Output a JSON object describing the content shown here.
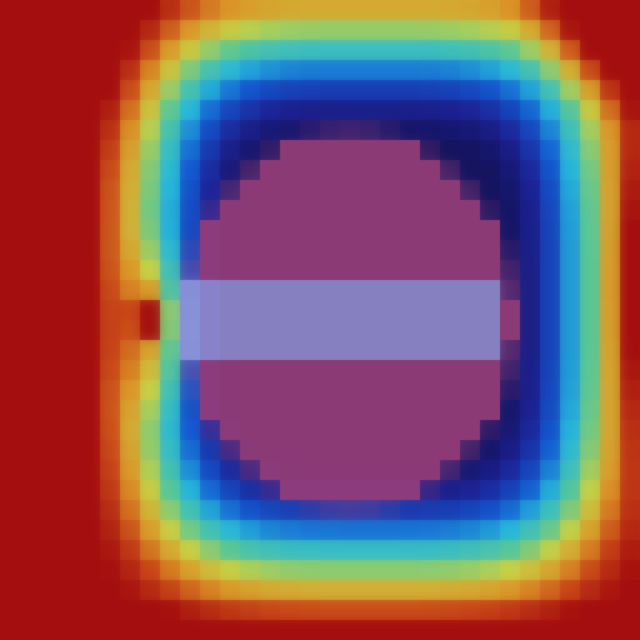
{
  "image": {
    "kind": "saliency-heatmap-overlay",
    "subject": "no-entry-sign",
    "pixelation_grid": 32,
    "colormap": "jet",
    "colors": {
      "sign_disc": "#a0417a",
      "sign_bar": "#a39bd9",
      "background_low": "#1c1e74",
      "background_mid": "#2ab6d9",
      "background_high": "#b81a12",
      "hotspot": "#f7e46a"
    }
  }
}
